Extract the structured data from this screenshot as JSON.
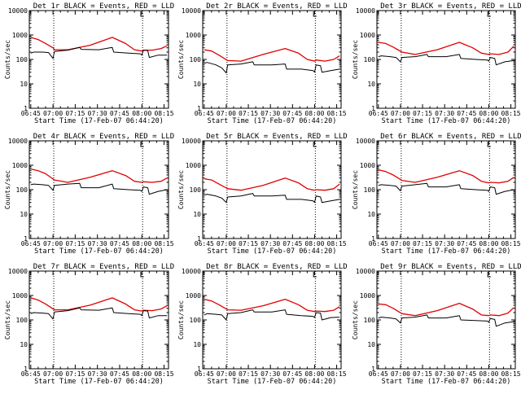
{
  "colors": {
    "events": "#000000",
    "lld": "#e00000",
    "axes": "#000000",
    "background": "#ffffff"
  },
  "chart_data": [
    {
      "type": "line",
      "title": "Det 1r BLACK = Events, RED = LLD",
      "xlabel": "Start Time (17-Feb-07 06:44:20)",
      "ylabel": "Counts/sec",
      "yscale": "log",
      "ylim": [
        1,
        10000
      ],
      "xlim": [
        -1.0,
        93.0
      ],
      "xticks": [
        "06:45",
        "07:00",
        "07:15",
        "07:30",
        "07:45",
        "08:00",
        "08:15"
      ],
      "yticks": [
        "1",
        "10",
        "100",
        "1000",
        "10000"
      ],
      "vlines": [
        15.5,
        75.5
      ],
      "legend": "none",
      "series": [
        {
          "name": "LLD",
          "x": [
            0,
            5,
            10,
            15,
            16,
            25,
            40,
            55,
            64,
            70,
            75,
            76,
            82,
            88,
            92
          ],
          "y": [
            800,
            650,
            450,
            300,
            250,
            250,
            380,
            800,
            450,
            250,
            220,
            240,
            240,
            280,
            360
          ]
        },
        {
          "name": "Events",
          "x": [
            0,
            2,
            8,
            12,
            15,
            16,
            25,
            33,
            34,
            46,
            55,
            56,
            66,
            74,
            75,
            76,
            79,
            80,
            86,
            92
          ],
          "y": [
            180,
            200,
            200,
            190,
            110,
            210,
            240,
            310,
            260,
            250,
            310,
            200,
            180,
            170,
            150,
            240,
            230,
            120,
            150,
            150
          ]
        }
      ]
    },
    {
      "type": "line",
      "title": "Det 2r BLACK = Events, RED = LLD",
      "xlabel": "Start Time (17-Feb-07 06:44:20)",
      "ylabel": "Counts/sec",
      "yscale": "log",
      "ylim": [
        1,
        10000
      ],
      "xlim": [
        -1.0,
        93.0
      ],
      "xticks": [
        "06:45",
        "07:00",
        "07:15",
        "07:30",
        "07:45",
        "08:00",
        "08:15"
      ],
      "yticks": [
        "1",
        "10",
        "100",
        "1000",
        "10000"
      ],
      "vlines": [
        15.5,
        75.5
      ],
      "legend": "none",
      "series": [
        {
          "name": "LLD",
          "x": [
            0,
            5,
            10,
            16,
            25,
            40,
            55,
            64,
            70,
            75,
            76,
            82,
            88,
            92
          ],
          "y": [
            250,
            220,
            150,
            90,
            85,
            160,
            280,
            180,
            100,
            85,
            95,
            85,
            100,
            140
          ]
        },
        {
          "name": "Events",
          "x": [
            0,
            2,
            8,
            12,
            15,
            16,
            25,
            33,
            34,
            46,
            55,
            56,
            66,
            74,
            75,
            76,
            79,
            80,
            86,
            92
          ],
          "y": [
            70,
            75,
            60,
            45,
            28,
            60,
            65,
            80,
            60,
            60,
            65,
            40,
            40,
            35,
            30,
            60,
            55,
            30,
            35,
            40
          ]
        }
      ]
    },
    {
      "type": "line",
      "title": "Det 3r BLACK = Events, RED = LLD",
      "xlabel": "Start Time (17-Feb-07 06:44:20)",
      "ylabel": "Counts/sec",
      "yscale": "log",
      "ylim": [
        1,
        10000
      ],
      "xlim": [
        -1.0,
        93.0
      ],
      "xticks": [
        "06:45",
        "07:00",
        "07:15",
        "07:30",
        "07:45",
        "08:00",
        "08:15"
      ],
      "yticks": [
        "1",
        "10",
        "100",
        "1000",
        "10000"
      ],
      "vlines": [
        15.5,
        75.5
      ],
      "legend": "none",
      "series": [
        {
          "name": "LLD",
          "x": [
            0,
            5,
            10,
            16,
            25,
            40,
            55,
            64,
            70,
            75,
            76,
            82,
            88,
            92
          ],
          "y": [
            500,
            450,
            320,
            200,
            160,
            250,
            500,
            300,
            180,
            160,
            170,
            160,
            200,
            350
          ]
        },
        {
          "name": "Events",
          "x": [
            0,
            2,
            8,
            12,
            15,
            16,
            25,
            33,
            34,
            46,
            55,
            56,
            66,
            74,
            75,
            76,
            79,
            80,
            86,
            92
          ],
          "y": [
            130,
            140,
            130,
            120,
            80,
            120,
            130,
            160,
            130,
            130,
            160,
            110,
            100,
            95,
            85,
            120,
            110,
            60,
            80,
            90
          ]
        }
      ]
    },
    {
      "type": "line",
      "title": "Det 4r BLACK = Events, RED = LLD",
      "xlabel": "Start Time (17-Feb-07 06:44:20)",
      "ylabel": "Counts/sec",
      "yscale": "log",
      "ylim": [
        1,
        10000
      ],
      "xlim": [
        -1.0,
        93.0
      ],
      "xticks": [
        "06:45",
        "07:00",
        "07:15",
        "07:30",
        "07:45",
        "08:00",
        "08:15"
      ],
      "yticks": [
        "1",
        "10",
        "100",
        "1000",
        "10000"
      ],
      "vlines": [
        15.5,
        75.5
      ],
      "legend": "none",
      "series": [
        {
          "name": "LLD",
          "x": [
            0,
            5,
            10,
            16,
            25,
            40,
            55,
            64,
            70,
            75,
            76,
            82,
            88,
            92
          ],
          "y": [
            700,
            600,
            450,
            250,
            200,
            320,
            600,
            380,
            220,
            200,
            210,
            200,
            220,
            300
          ]
        },
        {
          "name": "Events",
          "x": [
            0,
            2,
            8,
            12,
            15,
            16,
            25,
            33,
            34,
            46,
            55,
            56,
            66,
            74,
            75,
            76,
            79,
            80,
            86,
            92
          ],
          "y": [
            160,
            170,
            160,
            150,
            95,
            150,
            170,
            180,
            120,
            120,
            170,
            110,
            100,
            95,
            85,
            130,
            120,
            65,
            85,
            100
          ]
        }
      ]
    },
    {
      "type": "line",
      "title": "Det 5r BLACK = Events, RED = LLD",
      "xlabel": "Start Time (17-Feb-07 06:44:20)",
      "ylabel": "Counts/sec",
      "yscale": "log",
      "ylim": [
        1,
        10000
      ],
      "xlim": [
        -1.0,
        93.0
      ],
      "xticks": [
        "06:45",
        "07:00",
        "07:15",
        "07:30",
        "07:45",
        "08:00",
        "08:15"
      ],
      "yticks": [
        "1",
        "10",
        "100",
        "1000",
        "10000"
      ],
      "vlines": [
        15.5,
        75.5
      ],
      "legend": "none",
      "series": [
        {
          "name": "LLD",
          "x": [
            0,
            5,
            10,
            16,
            25,
            40,
            55,
            64,
            70,
            75,
            76,
            82,
            88,
            92
          ],
          "y": [
            280,
            250,
            170,
            110,
            95,
            150,
            300,
            190,
            110,
            95,
            100,
            95,
            110,
            170
          ]
        },
        {
          "name": "Events",
          "x": [
            0,
            2,
            8,
            12,
            15,
            16,
            25,
            33,
            34,
            46,
            55,
            56,
            66,
            74,
            75,
            76,
            79,
            80,
            86,
            92
          ],
          "y": [
            60,
            65,
            55,
            45,
            30,
            50,
            55,
            70,
            55,
            55,
            60,
            40,
            40,
            35,
            30,
            55,
            50,
            30,
            35,
            40
          ]
        }
      ]
    },
    {
      "type": "line",
      "title": "Det 6r BLACK = Events, RED = LLD",
      "xlabel": "Start Time (17-Feb-07 06:44:20)",
      "ylabel": "Counts/sec",
      "yscale": "log",
      "ylim": [
        1,
        10000
      ],
      "xlim": [
        -1.0,
        93.0
      ],
      "xticks": [
        "06:45",
        "07:00",
        "07:15",
        "07:30",
        "07:45",
        "08:00",
        "08:15"
      ],
      "yticks": [
        "1",
        "10",
        "100",
        "1000",
        "10000"
      ],
      "vlines": [
        15.5,
        75.5
      ],
      "legend": "none",
      "series": [
        {
          "name": "LLD",
          "x": [
            0,
            5,
            10,
            16,
            25,
            40,
            55,
            64,
            70,
            75,
            76,
            82,
            88,
            92
          ],
          "y": [
            650,
            550,
            400,
            240,
            200,
            320,
            600,
            380,
            220,
            190,
            200,
            190,
            220,
            320
          ]
        },
        {
          "name": "Events",
          "x": [
            0,
            2,
            8,
            12,
            15,
            16,
            25,
            33,
            34,
            46,
            55,
            56,
            66,
            74,
            75,
            76,
            79,
            80,
            86,
            92
          ],
          "y": [
            150,
            160,
            150,
            140,
            90,
            140,
            160,
            180,
            130,
            130,
            160,
            110,
            100,
            95,
            85,
            130,
            120,
            65,
            85,
            100
          ]
        }
      ]
    },
    {
      "type": "line",
      "title": "Det 7r BLACK = Events, RED = LLD",
      "xlabel": "Start Time (17-Feb-07 06:44:20)",
      "ylabel": "Counts/sec",
      "yscale": "log",
      "ylim": [
        1,
        10000
      ],
      "xlim": [
        -1.0,
        93.0
      ],
      "xticks": [
        "06:45",
        "07:00",
        "07:15",
        "07:30",
        "07:45",
        "08:00",
        "08:15"
      ],
      "yticks": [
        "1",
        "10",
        "100",
        "1000",
        "10000"
      ],
      "vlines": [
        15.5,
        75.5
      ],
      "legend": "none",
      "series": [
        {
          "name": "LLD",
          "x": [
            0,
            5,
            10,
            16,
            25,
            40,
            55,
            64,
            70,
            75,
            76,
            82,
            88,
            92
          ],
          "y": [
            800,
            650,
            450,
            260,
            260,
            400,
            800,
            450,
            260,
            230,
            250,
            240,
            280,
            380
          ]
        },
        {
          "name": "Events",
          "x": [
            0,
            2,
            8,
            12,
            15,
            16,
            25,
            33,
            34,
            46,
            55,
            56,
            66,
            74,
            75,
            76,
            79,
            80,
            86,
            92
          ],
          "y": [
            180,
            200,
            190,
            180,
            110,
            210,
            240,
            310,
            260,
            250,
            310,
            200,
            180,
            170,
            150,
            240,
            230,
            120,
            150,
            150
          ]
        }
      ]
    },
    {
      "type": "line",
      "title": "Det 8r BLACK = Events, RED = LLD",
      "xlabel": "Start Time (17-Feb-07 06:44:20)",
      "ylabel": "Counts/sec",
      "yscale": "log",
      "ylim": [
        1,
        10000
      ],
      "xlim": [
        -1.0,
        93.0
      ],
      "xticks": [
        "06:45",
        "07:00",
        "07:15",
        "07:30",
        "07:45",
        "08:00",
        "08:15"
      ],
      "yticks": [
        "1",
        "10",
        "100",
        "1000",
        "10000"
      ],
      "vlines": [
        15.5,
        75.5
      ],
      "legend": "none",
      "series": [
        {
          "name": "LLD",
          "x": [
            0,
            5,
            10,
            16,
            25,
            40,
            55,
            64,
            70,
            75,
            76,
            82,
            88,
            92
          ],
          "y": [
            700,
            600,
            420,
            260,
            250,
            380,
            700,
            420,
            250,
            220,
            230,
            220,
            250,
            350
          ]
        },
        {
          "name": "Events",
          "x": [
            0,
            2,
            8,
            12,
            15,
            16,
            25,
            33,
            34,
            46,
            55,
            56,
            66,
            74,
            75,
            76,
            79,
            80,
            86,
            92
          ],
          "y": [
            160,
            180,
            170,
            160,
            100,
            180,
            200,
            260,
            210,
            210,
            260,
            170,
            150,
            140,
            125,
            200,
            190,
            100,
            125,
            130
          ]
        }
      ]
    },
    {
      "type": "line",
      "title": "Det 9r BLACK = Events, RED = LLD",
      "xlabel": "Start Time (17-Feb-07 06:44:20)",
      "ylabel": "Counts/sec",
      "yscale": "log",
      "ylim": [
        1,
        10000
      ],
      "xlim": [
        -1.0,
        93.0
      ],
      "xticks": [
        "06:45",
        "07:00",
        "07:15",
        "07:30",
        "07:45",
        "08:00",
        "08:15"
      ],
      "yticks": [
        "1",
        "10",
        "100",
        "1000",
        "10000"
      ],
      "vlines": [
        15.5,
        75.5
      ],
      "legend": "none",
      "series": [
        {
          "name": "LLD",
          "x": [
            0,
            5,
            10,
            16,
            25,
            40,
            55,
            64,
            70,
            75,
            76,
            82,
            88,
            92
          ],
          "y": [
            450,
            420,
            300,
            180,
            150,
            240,
            480,
            280,
            160,
            150,
            160,
            150,
            190,
            320
          ]
        },
        {
          "name": "Events",
          "x": [
            0,
            2,
            8,
            12,
            15,
            16,
            25,
            33,
            34,
            46,
            55,
            56,
            66,
            74,
            75,
            76,
            79,
            80,
            86,
            92
          ],
          "y": [
            120,
            130,
            120,
            110,
            75,
            120,
            130,
            160,
            120,
            120,
            150,
            100,
            95,
            90,
            80,
            115,
            105,
            55,
            75,
            85
          ]
        }
      ]
    }
  ]
}
